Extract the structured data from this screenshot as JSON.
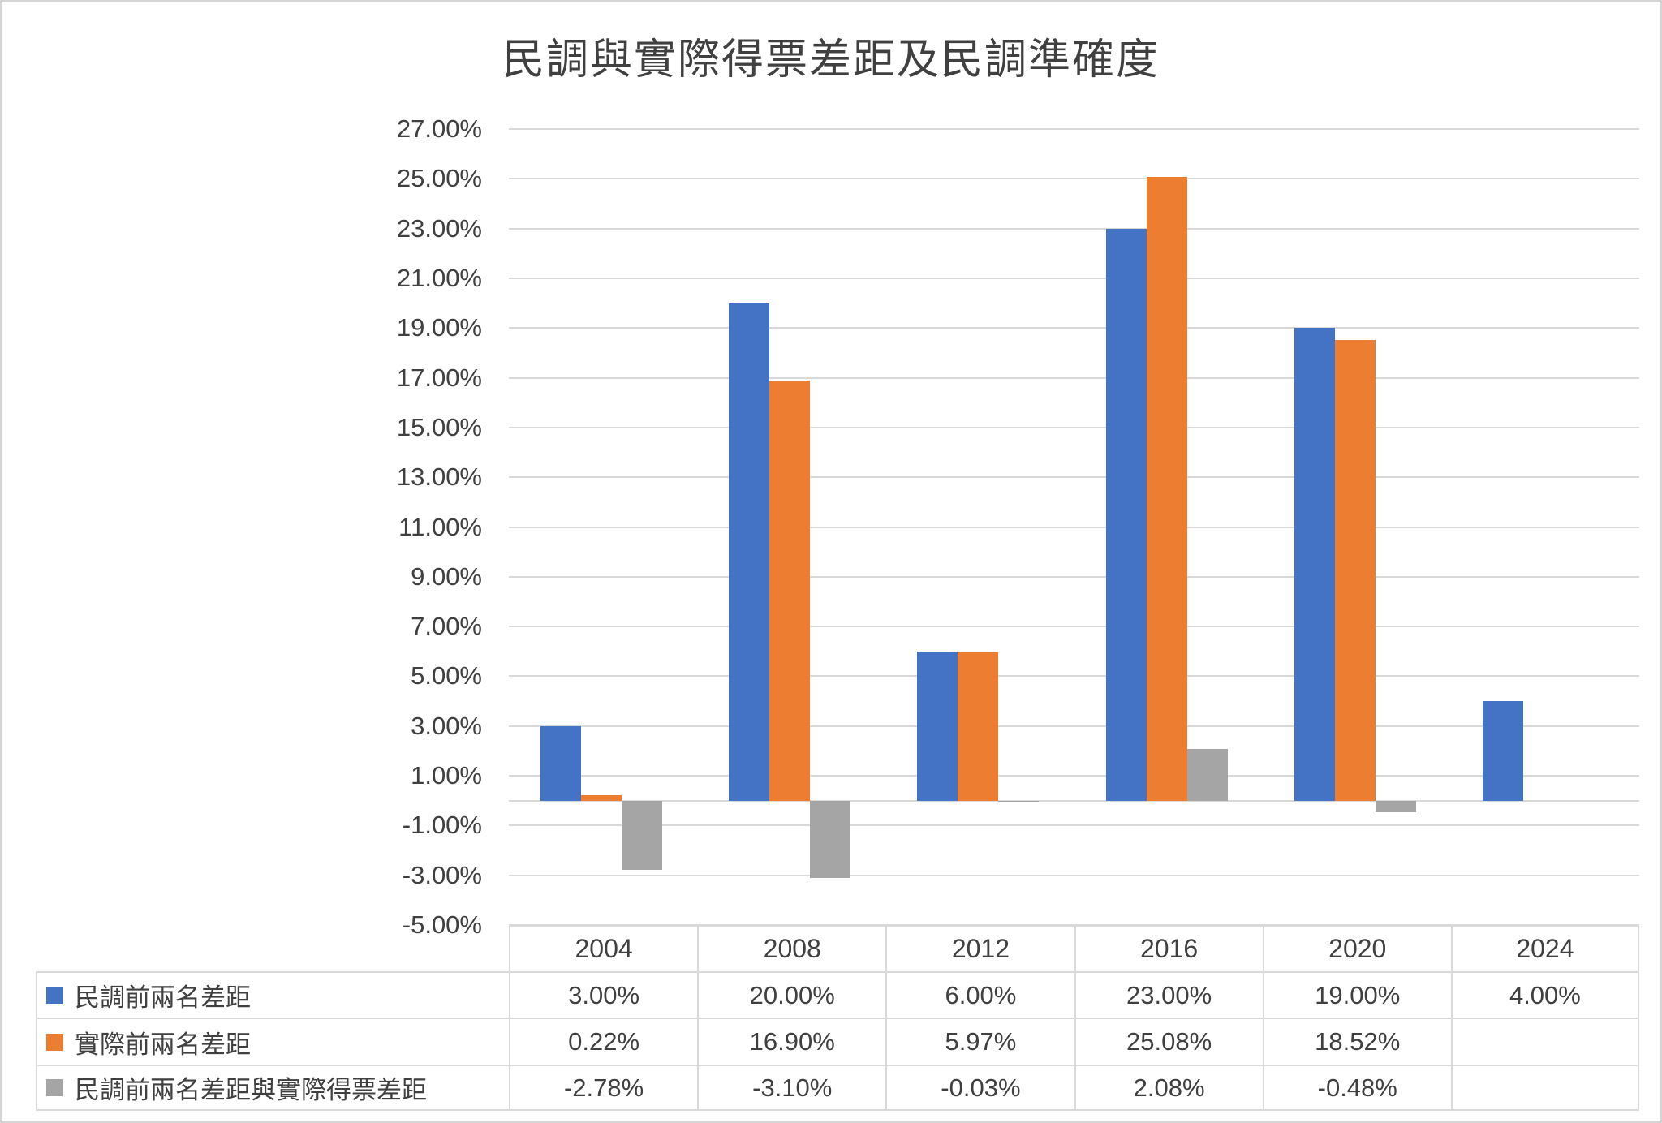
{
  "chart": {
    "title": "民調與實際得票差距及民調準確度"
  },
  "chart_data": {
    "type": "bar",
    "title": "民調與實際得票差距及民調準確度",
    "categories": [
      "2004",
      "2008",
      "2012",
      "2016",
      "2020",
      "2024"
    ],
    "series": [
      {
        "name": "民調前兩名差距",
        "color": "#4472C4",
        "values": [
          3.0,
          20.0,
          6.0,
          23.0,
          19.0,
          4.0
        ],
        "display": [
          "3.00%",
          "20.00%",
          "6.00%",
          "23.00%",
          "19.00%",
          "4.00%"
        ]
      },
      {
        "name": "實際前兩名差距",
        "color": "#ED7D31",
        "values": [
          0.22,
          16.9,
          5.97,
          25.08,
          18.52,
          null
        ],
        "display": [
          "0.22%",
          "16.90%",
          "5.97%",
          "25.08%",
          "18.52%",
          ""
        ]
      },
      {
        "name": "民調前兩名差距與實際得票差距",
        "color": "#A5A5A5",
        "values": [
          -2.78,
          -3.1,
          -0.03,
          2.08,
          -0.48,
          null
        ],
        "display": [
          "-2.78%",
          "-3.10%",
          "-0.03%",
          "2.08%",
          "-0.48%",
          ""
        ]
      }
    ],
    "y_axis": {
      "min": -5,
      "max": 27,
      "step": 2,
      "tick_labels": [
        "27.00%",
        "25.00%",
        "23.00%",
        "21.00%",
        "19.00%",
        "17.00%",
        "15.00%",
        "13.00%",
        "11.00%",
        "9.00%",
        "7.00%",
        "5.00%",
        "3.00%",
        "1.00%",
        "-1.00%",
        "-3.00%",
        "-5.00%"
      ]
    },
    "grid": true,
    "legend_position": "data-table-left"
  },
  "colors": {
    "grid": "#D9D9D9",
    "table_border": "#D9D9D9",
    "axis_text": "#404040",
    "background": "#FFFFFF"
  }
}
